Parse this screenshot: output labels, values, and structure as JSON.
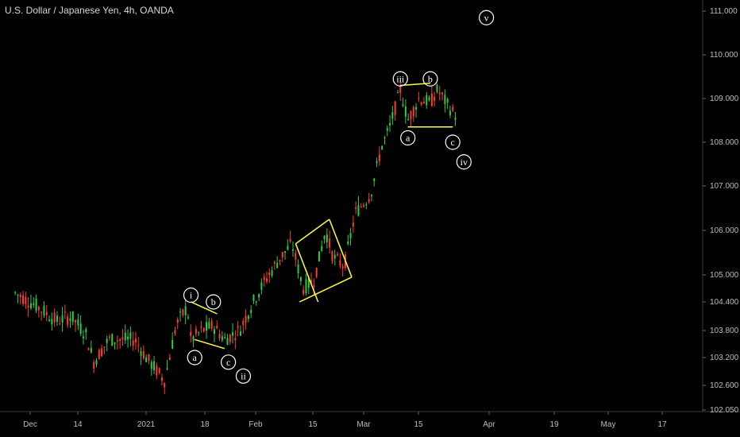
{
  "header": {
    "title": "U.S. Dollar / Japanese Yen, 4h, OANDA"
  },
  "colors": {
    "background": "#000000",
    "up": "#2ecc40",
    "down": "#ff3b30",
    "pattern": "#ffff3c",
    "label": "#ffffff",
    "axis": "#3a3a3a"
  },
  "chart_data": {
    "type": "candlestick",
    "title": "U.S. Dollar / Japanese Yen, 4h, OANDA",
    "x_tick_labels": [
      "Dec",
      "14",
      "2021",
      "18",
      "Feb",
      "15",
      "Mar",
      "15",
      "Apr",
      "19",
      "May",
      "17"
    ],
    "y_tick_labels": [
      "111.000",
      "110.000",
      "109.000",
      "108.000",
      "107.000",
      "106.000",
      "105.000",
      "104.400",
      "103.800",
      "103.200",
      "102.600",
      "102.050"
    ],
    "ylim": [
      102.05,
      111.2
    ],
    "price_path": [
      [
        "2020-11-26",
        104.6
      ],
      [
        "2020-12-02",
        104.3
      ],
      [
        "2020-12-07",
        104.0
      ],
      [
        "2020-12-11",
        104.1
      ],
      [
        "2020-12-15",
        103.7
      ],
      [
        "2020-12-17",
        103.1
      ],
      [
        "2020-12-21",
        103.6
      ],
      [
        "2020-12-24",
        103.6
      ],
      [
        "2020-12-28",
        103.6
      ],
      [
        "2020-12-31",
        103.2
      ],
      [
        "2021-01-05",
        102.7
      ],
      [
        "2021-01-08",
        103.9
      ],
      [
        "2021-01-11",
        104.3
      ],
      [
        "2021-01-12",
        103.6
      ],
      [
        "2021-01-15",
        103.8
      ],
      [
        "2021-01-18",
        103.9
      ],
      [
        "2021-01-21",
        103.6
      ],
      [
        "2021-01-25",
        103.8
      ],
      [
        "2021-01-28",
        104.3
      ],
      [
        "2021-02-01",
        104.9
      ],
      [
        "2021-02-05",
        105.4
      ],
      [
        "2021-02-08",
        105.7
      ],
      [
        "2021-02-11",
        104.7
      ],
      [
        "2021-02-14",
        104.9
      ],
      [
        "2021-02-17",
        106.0
      ],
      [
        "2021-02-19",
        105.4
      ],
      [
        "2021-02-22",
        105.2
      ],
      [
        "2021-02-25",
        106.4
      ],
      [
        "2021-03-01",
        106.8
      ],
      [
        "2021-03-04",
        107.9
      ],
      [
        "2021-03-06",
        108.3
      ],
      [
        "2021-03-09",
        109.2
      ],
      [
        "2021-03-11",
        108.5
      ],
      [
        "2021-03-14",
        109.0
      ],
      [
        "2021-03-17",
        108.9
      ],
      [
        "2021-03-19",
        109.2
      ],
      [
        "2021-03-22",
        108.8
      ],
      [
        "2021-03-24",
        108.6
      ]
    ],
    "wave_labels": [
      {
        "text": "i",
        "date": "2021-01-12",
        "price": 104.55
      },
      {
        "text": "a",
        "date": "2021-01-13",
        "price": 103.2
      },
      {
        "text": "b",
        "date": "2021-01-18",
        "price": 104.4
      },
      {
        "text": "c",
        "date": "2021-01-22",
        "price": 103.1
      },
      {
        "text": "ii",
        "date": "2021-01-26",
        "price": 102.8
      },
      {
        "text": "iii",
        "date": "2021-03-09",
        "price": 109.45
      },
      {
        "text": "a",
        "date": "2021-03-11",
        "price": 108.1
      },
      {
        "text": "b",
        "date": "2021-03-17",
        "price": 109.45
      },
      {
        "text": "c",
        "date": "2021-03-23",
        "price": 108.0
      },
      {
        "text": "iv",
        "date": "2021-03-26",
        "price": 107.55
      },
      {
        "text": "v",
        "date": "2021-04-01",
        "price": 110.85
      }
    ],
    "trendlines": [
      {
        "from": [
          "2021-01-12",
          104.4
        ],
        "to": [
          "2021-01-19",
          104.15
        ]
      },
      {
        "from": [
          "2021-01-13",
          103.6
        ],
        "to": [
          "2021-01-21",
          103.4
        ]
      },
      {
        "from": [
          "2021-02-09",
          105.7
        ],
        "to": [
          "2021-02-18",
          106.25
        ]
      },
      {
        "from": [
          "2021-02-10",
          104.4
        ],
        "to": [
          "2021-02-24",
          104.95
        ]
      },
      {
        "from": [
          "2021-02-09",
          105.7
        ],
        "to": [
          "2021-02-15",
          104.4
        ]
      },
      {
        "from": [
          "2021-02-18",
          106.25
        ],
        "to": [
          "2021-02-24",
          104.95
        ]
      },
      {
        "from": [
          "2021-03-09",
          109.3
        ],
        "to": [
          "2021-03-17",
          109.35
        ]
      },
      {
        "from": [
          "2021-03-11",
          108.35
        ],
        "to": [
          "2021-03-23",
          108.35
        ]
      }
    ]
  }
}
